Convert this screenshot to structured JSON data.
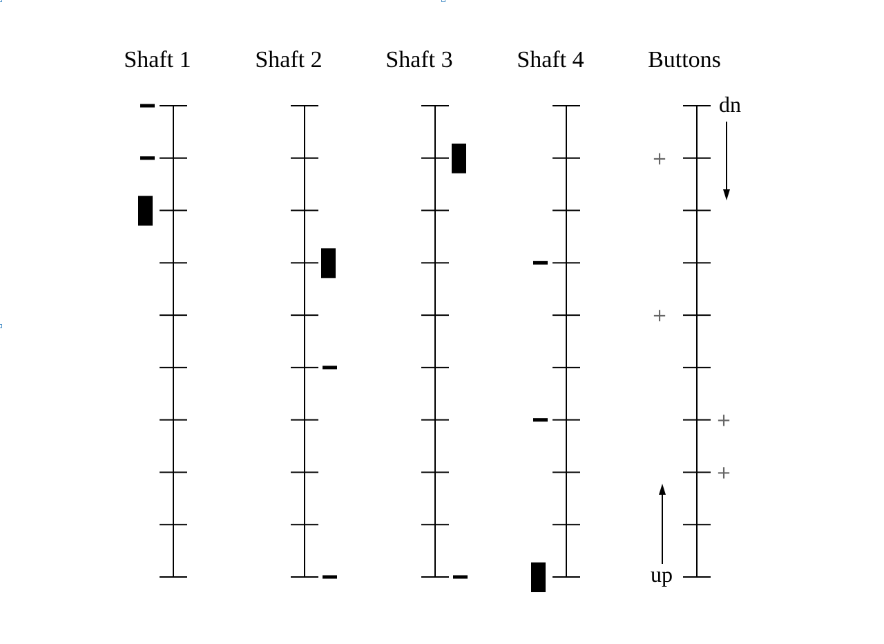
{
  "diagram": {
    "floor_count": 10,
    "columns": [
      {
        "title": "Shaft 1",
        "cars": [
          {
            "floor": 8,
            "kind": "car"
          }
        ],
        "stops": [
          {
            "floor": 10,
            "side": "left"
          },
          {
            "floor": 9,
            "side": "left"
          }
        ]
      },
      {
        "title": "Shaft 2",
        "cars": [
          {
            "floor": 7,
            "kind": "car"
          }
        ],
        "stops": [
          {
            "floor": 5,
            "side": "right"
          },
          {
            "floor": 1,
            "side": "right"
          }
        ]
      },
      {
        "title": "Shaft 3",
        "cars": [
          {
            "floor": 9,
            "kind": "car"
          }
        ],
        "stops": [
          {
            "floor": 1,
            "side": "right"
          }
        ]
      },
      {
        "title": "Shaft 4",
        "cars": [
          {
            "floor": 1,
            "kind": "car"
          }
        ],
        "stops": [
          {
            "floor": 7,
            "side": "left"
          },
          {
            "floor": 4,
            "side": "left"
          }
        ]
      },
      {
        "title": "Buttons",
        "down_label": "dn",
        "up_label": "up",
        "plus_symbol": "+",
        "down_calls": [
          9,
          6
        ],
        "up_calls": [
          4,
          3
        ]
      }
    ]
  }
}
